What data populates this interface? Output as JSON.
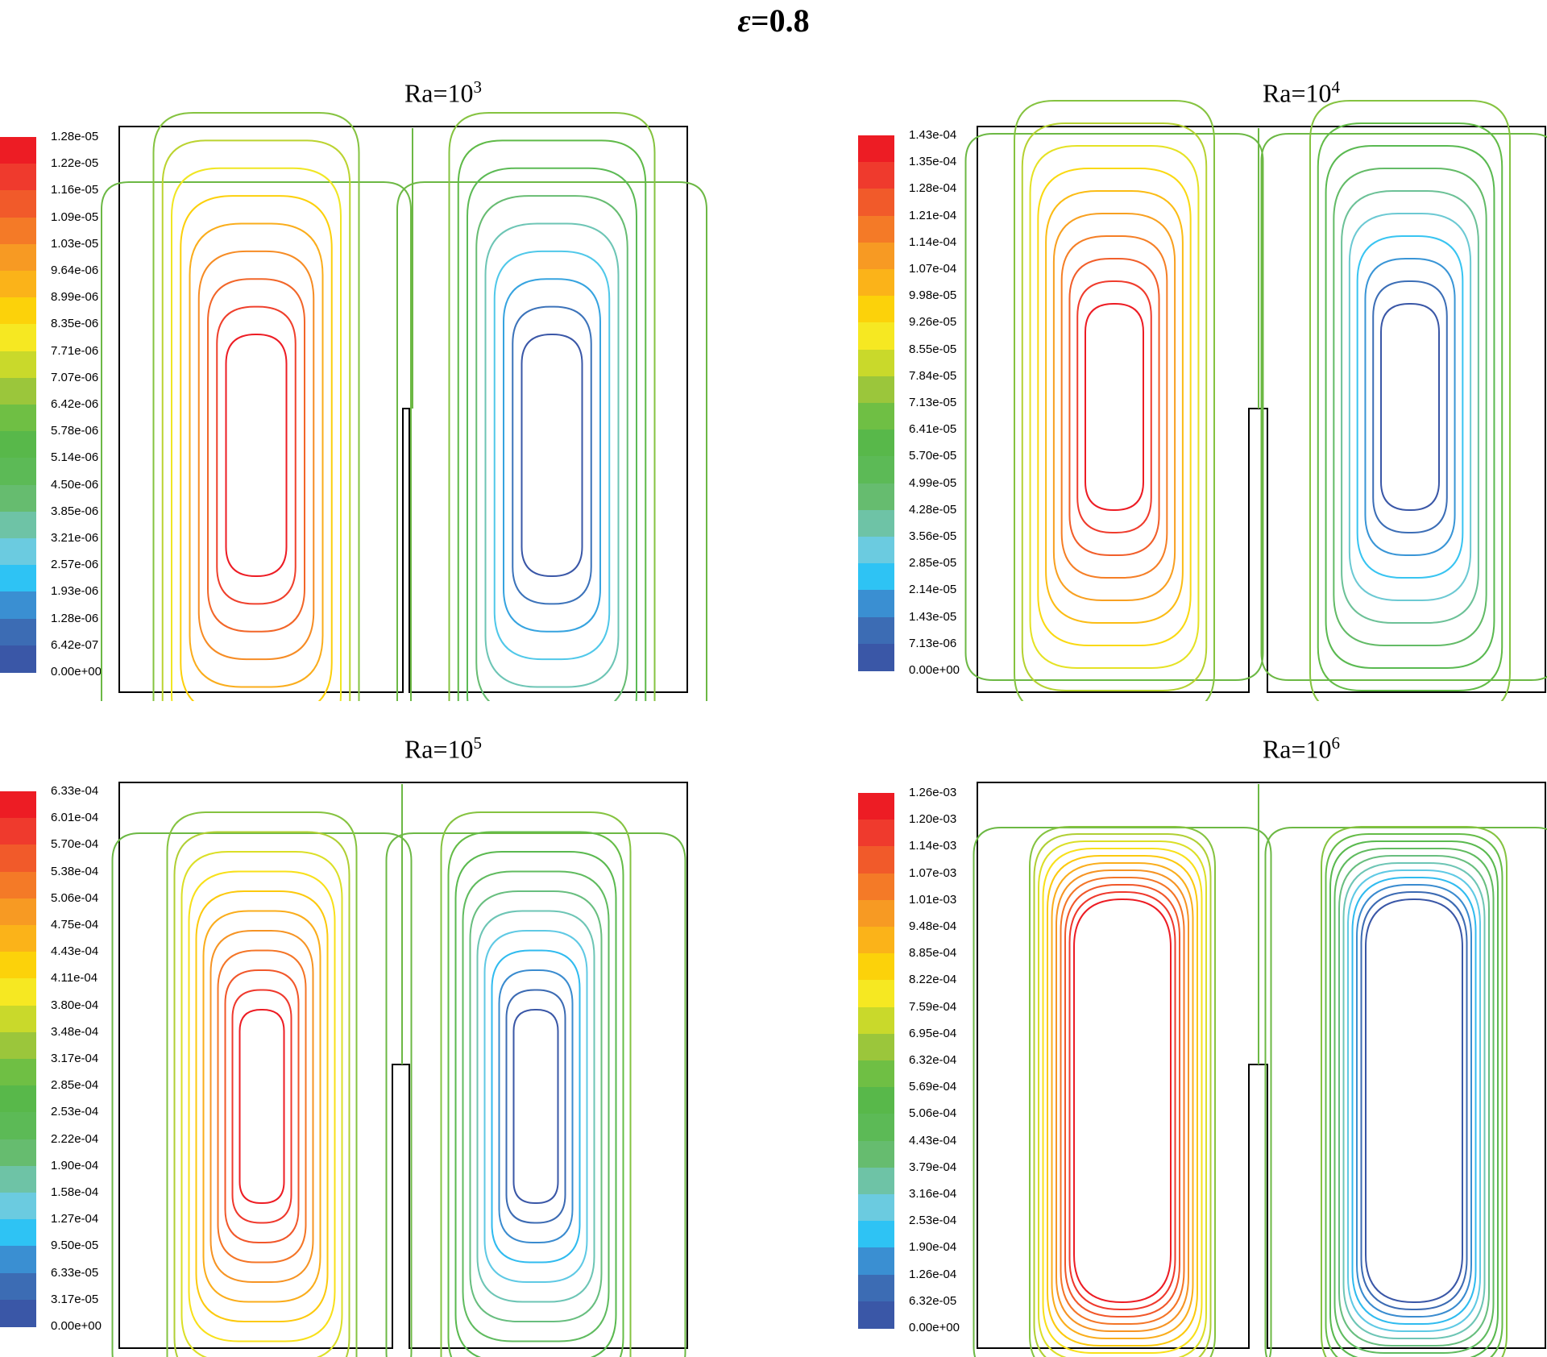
{
  "figure": {
    "title_symbol": "ε",
    "title_value": "=0.8"
  },
  "chart_data": [
    {
      "type": "contour",
      "title_base": "Ra=10",
      "title_exp": "3",
      "colorbar": [
        "1.28e-05",
        "1.22e-05",
        "1.16e-05",
        "1.09e-05",
        "1.03e-05",
        "9.64e-06",
        "8.99e-06",
        "8.35e-06",
        "7.71e-06",
        "7.07e-06",
        "6.42e-06",
        "5.78e-06",
        "5.14e-06",
        "4.50e-06",
        "3.85e-06",
        "3.21e-06",
        "2.57e-06",
        "1.93e-06",
        "1.28e-06",
        "6.42e-07",
        "0.00e+00"
      ]
    },
    {
      "type": "contour",
      "title_base": "Ra=10",
      "title_exp": "4",
      "colorbar": [
        "1.43e-04",
        "1.35e-04",
        "1.28e-04",
        "1.21e-04",
        "1.14e-04",
        "1.07e-04",
        "9.98e-05",
        "9.26e-05",
        "8.55e-05",
        "7.84e-05",
        "7.13e-05",
        "6.41e-05",
        "5.70e-05",
        "4.99e-05",
        "4.28e-05",
        "3.56e-05",
        "2.85e-05",
        "2.14e-05",
        "1.43e-05",
        "7.13e-06",
        "0.00e+00"
      ]
    },
    {
      "type": "contour",
      "title_base": "Ra=10",
      "title_exp": "5",
      "colorbar": [
        "6.33e-04",
        "6.01e-04",
        "5.70e-04",
        "5.38e-04",
        "5.06e-04",
        "4.75e-04",
        "4.43e-04",
        "4.11e-04",
        "3.80e-04",
        "3.48e-04",
        "3.17e-04",
        "2.85e-04",
        "2.53e-04",
        "2.22e-04",
        "1.90e-04",
        "1.58e-04",
        "1.27e-04",
        "9.50e-05",
        "6.33e-05",
        "3.17e-05",
        "0.00e+00"
      ]
    },
    {
      "type": "contour",
      "title_base": "Ra=10",
      "title_exp": "6",
      "colorbar": [
        "1.26e-03",
        "1.20e-03",
        "1.14e-03",
        "1.07e-03",
        "1.01e-03",
        "9.48e-04",
        "8.85e-04",
        "8.22e-04",
        "7.59e-04",
        "6.95e-04",
        "6.32e-04",
        "5.69e-04",
        "5.06e-04",
        "4.43e-04",
        "3.79e-04",
        "3.16e-04",
        "2.53e-04",
        "1.90e-04",
        "1.26e-04",
        "6.32e-05",
        "0.00e+00"
      ]
    }
  ],
  "palette": [
    "#ed1c24",
    "#ef3a2d",
    "#f15a2a",
    "#f47a27",
    "#f79a23",
    "#fbb319",
    "#fcd20a",
    "#f6e822",
    "#c9d92b",
    "#9bc63b",
    "#6fbf44",
    "#58b84a",
    "#5cba56",
    "#66bc6f",
    "#6ec3a6",
    "#6bcbe0",
    "#2ec3f4",
    "#3a8fd2",
    "#3c6cb4",
    "#3a57a7"
  ]
}
